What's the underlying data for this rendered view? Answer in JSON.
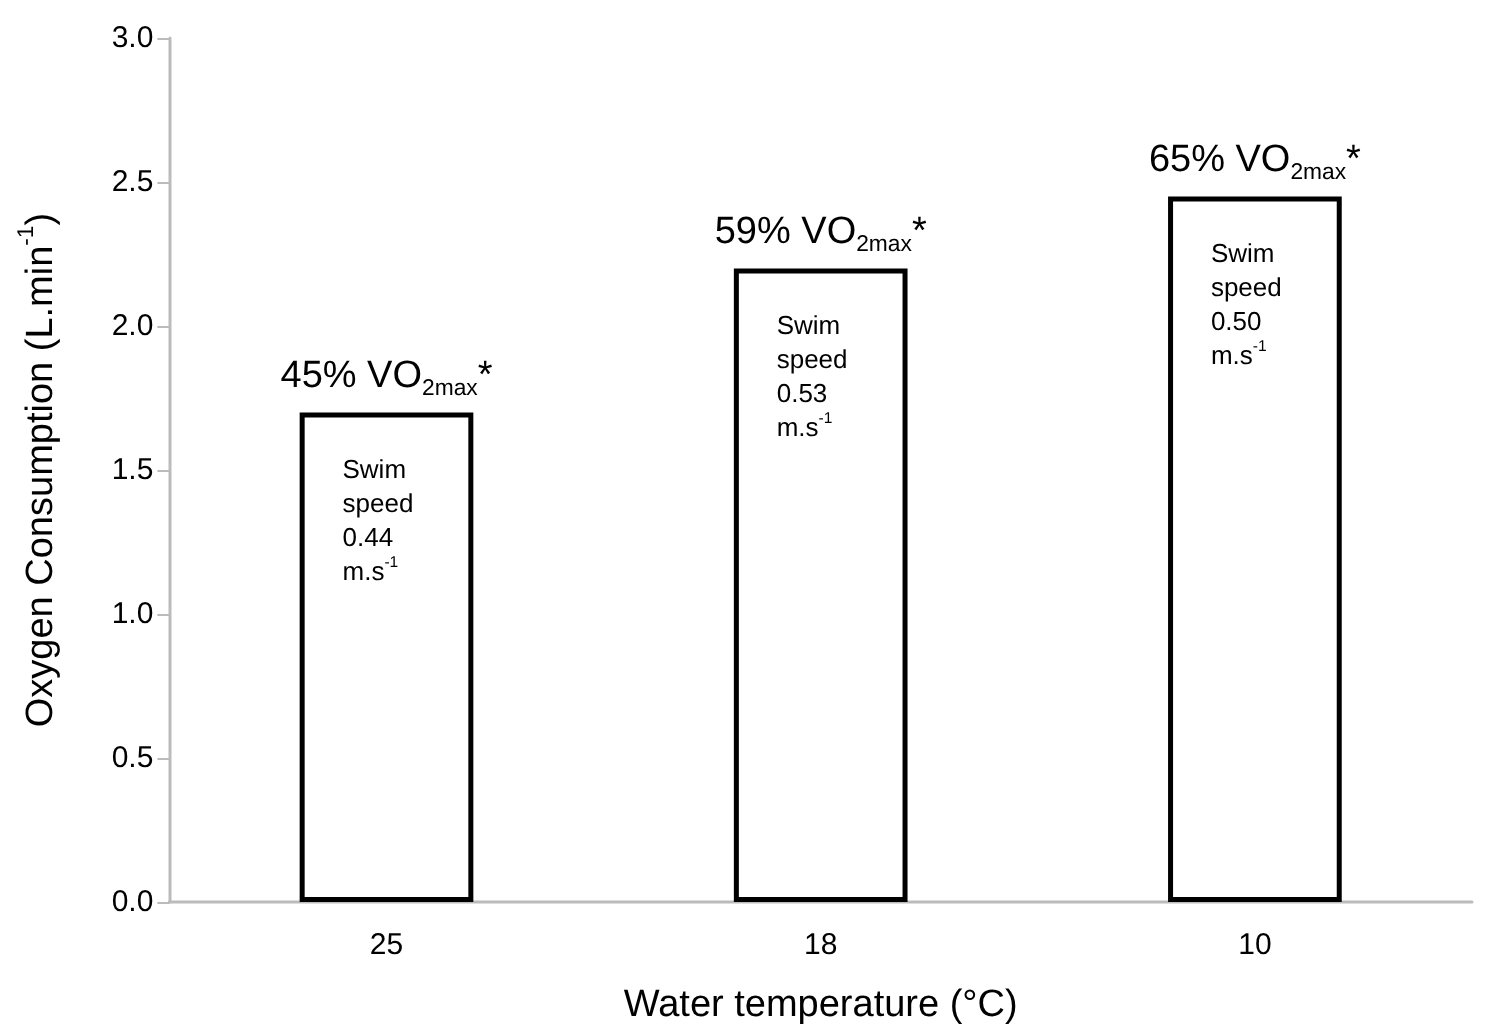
{
  "chart_data": {
    "type": "bar",
    "xlabel": "Water temperature (°C)",
    "ylabel": "Oxygen Consumption (L.min$^{-1}$)",
    "categories": [
      "25",
      "18",
      "10"
    ],
    "values": [
      1.7,
      2.2,
      2.45
    ],
    "color": "#ffffff",
    "ylim": [
      0,
      3
    ],
    "yticks": [
      {
        "value": 0,
        "label": "0.0"
      },
      {
        "value": 0.5,
        "label": "0.5"
      },
      {
        "value": 1,
        "label": "1.0"
      },
      {
        "value": 1.5,
        "label": "1.5"
      },
      {
        "value": 2,
        "label": "2.0"
      },
      {
        "value": 2.5,
        "label": "2.5"
      },
      {
        "value": 3,
        "label": "3.0"
      }
    ],
    "grid": false,
    "annotations": [
      {
        "text": "45% VO$_{2max}$*",
        "x": "25",
        "y": 1.7
      },
      {
        "text": "59% VO$_{2max}$*",
        "x": "18",
        "y": 2.2
      },
      {
        "text": "65% VO$_{2max}$*",
        "x": "10",
        "y": 2.45
      },
      "Swim\nspeed\n0.44\nm.s$^{-1}$",
      "Swim\nspeed\n0.53\nm.s$^{-1}$",
      "Swim\nspeed\n0.50\nm.s$^{-1}$"
    ]
  }
}
